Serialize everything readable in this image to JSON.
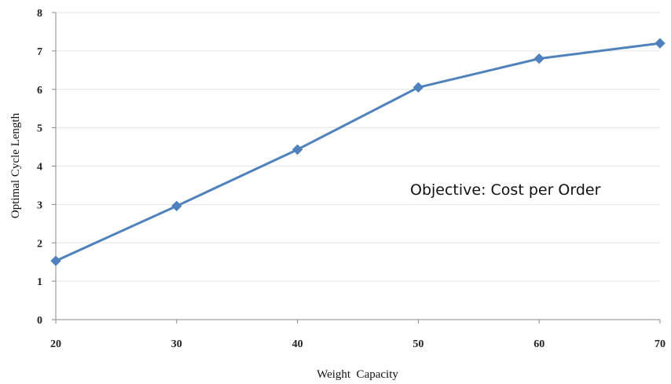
{
  "chart_data": {
    "type": "line",
    "title": "",
    "xlabel": "Weight  Capacity",
    "ylabel": "Optimal Cycle Length",
    "annotation": "Objective: Cost per Order",
    "x": [
      20,
      30,
      40,
      50,
      60,
      70
    ],
    "xticks": [
      "20",
      "30",
      "40",
      "50",
      "60",
      "70"
    ],
    "yticks": [
      "0",
      "1",
      "2",
      "3",
      "4",
      "5",
      "6",
      "7",
      "8"
    ],
    "xlim": [
      20,
      70
    ],
    "ylim": [
      0,
      8
    ],
    "grid": "horizontal",
    "legend": "none",
    "series": [
      {
        "values": [
          1.53,
          2.96,
          4.43,
          6.05,
          6.8,
          7.2
        ],
        "color": "#4F81BD",
        "marker": "diamond"
      }
    ]
  }
}
